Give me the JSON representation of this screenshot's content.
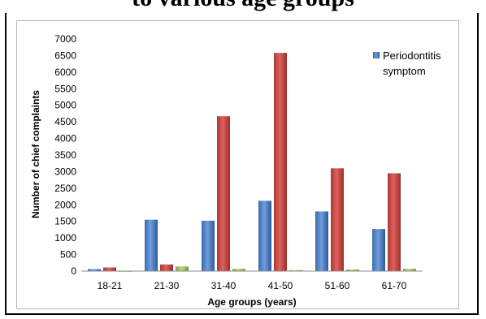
{
  "chart_data": {
    "type": "bar",
    "title": "to various age groups",
    "xlabel": "Age groups (years)",
    "ylabel": "Number of chief complaints",
    "ylim": [
      0,
      7000
    ],
    "yticks": [
      0,
      500,
      1000,
      1500,
      2000,
      2500,
      3000,
      3500,
      4000,
      4500,
      5000,
      5500,
      6000,
      6500,
      7000
    ],
    "categories": [
      "18-21",
      "21-30",
      "31-40",
      "41-50",
      "51-60",
      "61-70"
    ],
    "series": [
      {
        "name": "Periodontitis symptom",
        "color": "#4a7ebb",
        "values": [
          60,
          1550,
          1520,
          2120,
          1800,
          1270
        ]
      },
      {
        "color": "#c0504d",
        "values": [
          110,
          200,
          4670,
          6580,
          3100,
          2950
        ]
      },
      {
        "color": "#9bbb59",
        "values": [
          5,
          140,
          70,
          30,
          50,
          70
        ]
      }
    ],
    "legend": {
      "position": "top-right",
      "entries": [
        "Periodontitis symptom"
      ]
    }
  }
}
